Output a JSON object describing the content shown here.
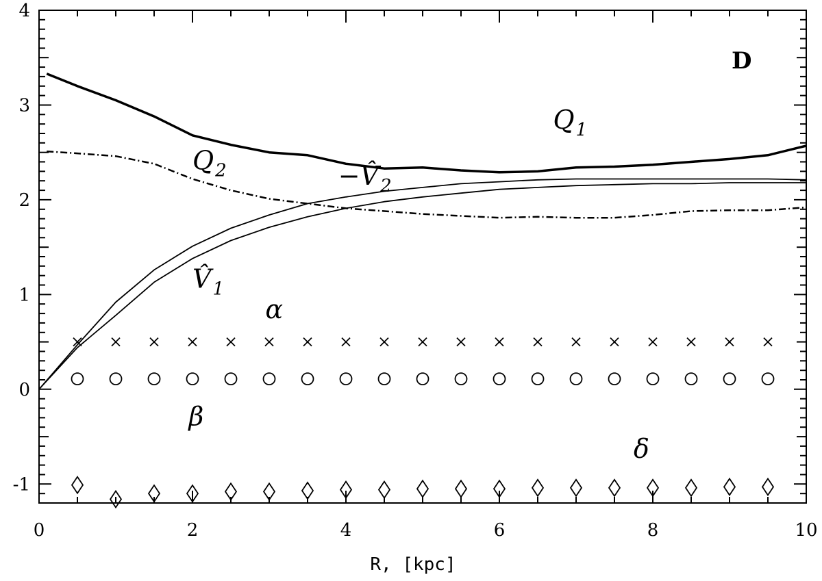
{
  "chart_data": {
    "type": "line",
    "panel_label": "D",
    "xlabel": "R, [kpc]",
    "ylabel": "",
    "xlim": [
      0,
      10
    ],
    "ylim": [
      -1.2,
      4
    ],
    "x_ticks": [
      "0",
      "2",
      "4",
      "6",
      "8",
      "10"
    ],
    "y_ticks": [
      "-1",
      "0",
      "1",
      "2",
      "3",
      "4"
    ],
    "x_tick_values": [
      0,
      2,
      4,
      6,
      8,
      10
    ],
    "y_tick_values": [
      -1,
      0,
      1,
      2,
      3,
      4
    ],
    "grid": false,
    "series": [
      {
        "name": "Q_1",
        "style": "thick-solid",
        "x": [
          0.1,
          0.5,
          1.0,
          1.5,
          2.0,
          2.5,
          3.0,
          3.5,
          4.0,
          4.5,
          5.0,
          5.5,
          6.0,
          6.5,
          7.0,
          7.5,
          8.0,
          8.5,
          9.0,
          9.5,
          10.0
        ],
        "values": [
          3.33,
          3.2,
          3.05,
          2.88,
          2.68,
          2.58,
          2.5,
          2.47,
          2.38,
          2.33,
          2.34,
          2.31,
          2.29,
          2.3,
          2.34,
          2.35,
          2.37,
          2.4,
          2.43,
          2.47,
          2.57
        ]
      },
      {
        "name": "Q_2",
        "style": "dash-dot",
        "x": [
          0.1,
          0.5,
          1.0,
          1.5,
          2.0,
          2.5,
          3.0,
          3.5,
          4.0,
          4.5,
          5.0,
          5.5,
          6.0,
          6.5,
          7.0,
          7.5,
          8.0,
          8.5,
          9.0,
          9.5,
          10.0
        ],
        "values": [
          2.51,
          2.49,
          2.46,
          2.38,
          2.22,
          2.1,
          2.01,
          1.96,
          1.91,
          1.88,
          1.85,
          1.83,
          1.81,
          1.82,
          1.81,
          1.81,
          1.84,
          1.88,
          1.89,
          1.89,
          1.92
        ]
      },
      {
        "name": "-V̂_2",
        "style": "thin-solid",
        "x": [
          0,
          0.5,
          1.0,
          1.5,
          2.0,
          2.5,
          3.0,
          3.5,
          4.0,
          4.5,
          5.0,
          5.5,
          6.0,
          6.5,
          7.0,
          7.5,
          8.0,
          8.5,
          9.0,
          9.5,
          10.0
        ],
        "values": [
          0,
          0.47,
          0.92,
          1.26,
          1.51,
          1.7,
          1.84,
          1.96,
          2.03,
          2.09,
          2.13,
          2.17,
          2.19,
          2.21,
          2.22,
          2.22,
          2.22,
          2.22,
          2.22,
          2.22,
          2.21
        ]
      },
      {
        "name": "V̂_1",
        "style": "thin-solid",
        "x": [
          0,
          0.5,
          1.0,
          1.5,
          2.0,
          2.5,
          3.0,
          3.5,
          4.0,
          4.5,
          5.0,
          5.5,
          6.0,
          6.5,
          7.0,
          7.5,
          8.0,
          8.5,
          9.0,
          9.5,
          10.0
        ],
        "values": [
          0,
          0.44,
          0.78,
          1.13,
          1.38,
          1.57,
          1.71,
          1.82,
          1.91,
          1.98,
          2.03,
          2.07,
          2.11,
          2.13,
          2.15,
          2.16,
          2.17,
          2.17,
          2.18,
          2.18,
          2.18
        ]
      },
      {
        "name": "α",
        "style": "marker-x",
        "x": [
          0.5,
          1.0,
          1.5,
          2.0,
          2.5,
          3.0,
          3.5,
          4.0,
          4.5,
          5.0,
          5.5,
          6.0,
          6.5,
          7.0,
          7.5,
          8.0,
          8.5,
          9.0,
          9.5
        ],
        "values": [
          0.5,
          0.5,
          0.5,
          0.5,
          0.5,
          0.5,
          0.5,
          0.5,
          0.5,
          0.5,
          0.5,
          0.5,
          0.5,
          0.5,
          0.5,
          0.5,
          0.5,
          0.5,
          0.5
        ]
      },
      {
        "name": "β",
        "style": "marker-circle",
        "x": [
          0.5,
          1.0,
          1.5,
          2.0,
          2.5,
          3.0,
          3.5,
          4.0,
          4.5,
          5.0,
          5.5,
          6.0,
          6.5,
          7.0,
          7.5,
          8.0,
          8.5,
          9.0,
          9.5
        ],
        "values": [
          0.11,
          0.11,
          0.11,
          0.11,
          0.11,
          0.11,
          0.11,
          0.11,
          0.11,
          0.11,
          0.11,
          0.11,
          0.11,
          0.11,
          0.11,
          0.11,
          0.11,
          0.11,
          0.11
        ]
      },
      {
        "name": "δ",
        "style": "marker-diamond",
        "x": [
          0.5,
          1.0,
          1.5,
          2.0,
          2.5,
          3.0,
          3.5,
          4.0,
          4.5,
          5.0,
          5.5,
          6.0,
          6.5,
          7.0,
          7.5,
          8.0,
          8.5,
          9.0,
          9.5
        ],
        "values": [
          -1.01,
          -1.16,
          -1.1,
          -1.1,
          -1.08,
          -1.08,
          -1.07,
          -1.06,
          -1.06,
          -1.05,
          -1.05,
          -1.05,
          -1.04,
          -1.04,
          -1.04,
          -1.04,
          -1.04,
          -1.03,
          -1.03
        ]
      }
    ],
    "annotations": [
      {
        "main": "Q",
        "sub": "1",
        "x": 6.7,
        "y": 2.75
      },
      {
        "main": "Q",
        "sub": "2",
        "x": 2.0,
        "y": 2.32
      },
      {
        "main": "−V̂",
        "sub": "2",
        "x": 3.9,
        "y": 2.16
      },
      {
        "main": "V̂",
        "sub": "1",
        "x": 2.0,
        "y": 1.07
      },
      {
        "main": "α",
        "sub": "",
        "x": 2.95,
        "y": 0.75
      },
      {
        "main": "β",
        "sub": "",
        "x": 1.95,
        "y": -0.38
      },
      {
        "main": "δ",
        "sub": "",
        "x": 7.75,
        "y": -0.72
      }
    ]
  }
}
